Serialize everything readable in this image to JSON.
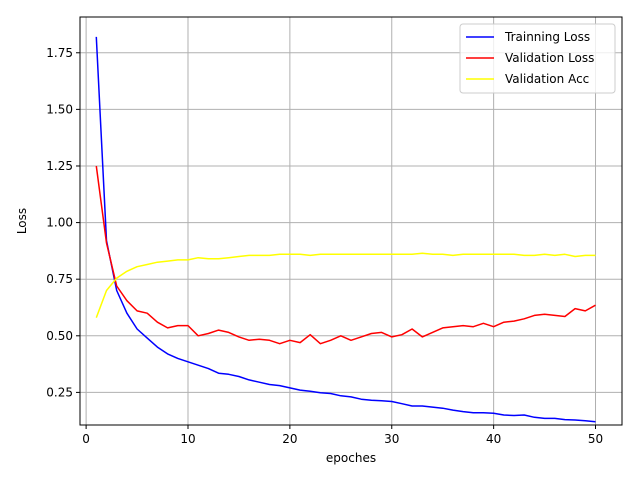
{
  "chart_data": {
    "type": "line",
    "xlabel": "epoches",
    "ylabel": "Loss",
    "xlim": [
      -0.6,
      52.6
    ],
    "ylim": [
      0.106,
      1.908
    ],
    "xticks": [
      0,
      10,
      20,
      30,
      40,
      50
    ],
    "yticks": [
      0.25,
      0.5,
      0.75,
      1.0,
      1.25,
      1.5,
      1.75
    ],
    "ytick_labels": [
      "0.25",
      "0.50",
      "0.75",
      "1.00",
      "1.25",
      "1.50",
      "1.75"
    ],
    "xtick_labels": [
      "0",
      "10",
      "20",
      "30",
      "40",
      "50"
    ],
    "grid": true,
    "legend_position": "top-right",
    "x": [
      1,
      2,
      3,
      4,
      5,
      6,
      7,
      8,
      9,
      10,
      11,
      12,
      13,
      14,
      15,
      16,
      17,
      18,
      19,
      20,
      21,
      22,
      23,
      24,
      25,
      26,
      27,
      28,
      29,
      30,
      31,
      32,
      33,
      34,
      35,
      36,
      37,
      38,
      39,
      40,
      41,
      42,
      43,
      44,
      45,
      46,
      47,
      48,
      49,
      50
    ],
    "series": [
      {
        "name": "Trainning Loss",
        "color": "#0000ff",
        "values": [
          1.82,
          0.92,
          0.7,
          0.6,
          0.53,
          0.49,
          0.45,
          0.42,
          0.4,
          0.385,
          0.37,
          0.355,
          0.335,
          0.33,
          0.32,
          0.305,
          0.295,
          0.285,
          0.28,
          0.27,
          0.26,
          0.255,
          0.248,
          0.245,
          0.235,
          0.23,
          0.22,
          0.215,
          0.213,
          0.21,
          0.2,
          0.19,
          0.19,
          0.185,
          0.18,
          0.172,
          0.165,
          0.16,
          0.16,
          0.158,
          0.15,
          0.148,
          0.15,
          0.14,
          0.135,
          0.135,
          0.13,
          0.128,
          0.125,
          0.12
        ]
      },
      {
        "name": "Validation Loss",
        "color": "#ff0000",
        "values": [
          1.25,
          0.91,
          0.72,
          0.655,
          0.61,
          0.6,
          0.56,
          0.535,
          0.545,
          0.545,
          0.5,
          0.51,
          0.525,
          0.515,
          0.495,
          0.48,
          0.485,
          0.48,
          0.465,
          0.48,
          0.47,
          0.505,
          0.465,
          0.48,
          0.5,
          0.48,
          0.495,
          0.51,
          0.515,
          0.495,
          0.505,
          0.53,
          0.495,
          0.515,
          0.535,
          0.54,
          0.545,
          0.54,
          0.555,
          0.54,
          0.56,
          0.565,
          0.575,
          0.59,
          0.595,
          0.59,
          0.585,
          0.62,
          0.61,
          0.635
        ]
      },
      {
        "name": "Validation Acc",
        "color": "#ffff00",
        "values": [
          0.58,
          0.7,
          0.755,
          0.785,
          0.805,
          0.815,
          0.825,
          0.83,
          0.835,
          0.835,
          0.845,
          0.84,
          0.84,
          0.845,
          0.85,
          0.855,
          0.855,
          0.855,
          0.86,
          0.86,
          0.86,
          0.855,
          0.86,
          0.86,
          0.86,
          0.86,
          0.86,
          0.86,
          0.86,
          0.86,
          0.86,
          0.86,
          0.865,
          0.86,
          0.86,
          0.855,
          0.86,
          0.86,
          0.86,
          0.86,
          0.86,
          0.86,
          0.855,
          0.855,
          0.86,
          0.855,
          0.86,
          0.85,
          0.855,
          0.855
        ]
      }
    ]
  }
}
